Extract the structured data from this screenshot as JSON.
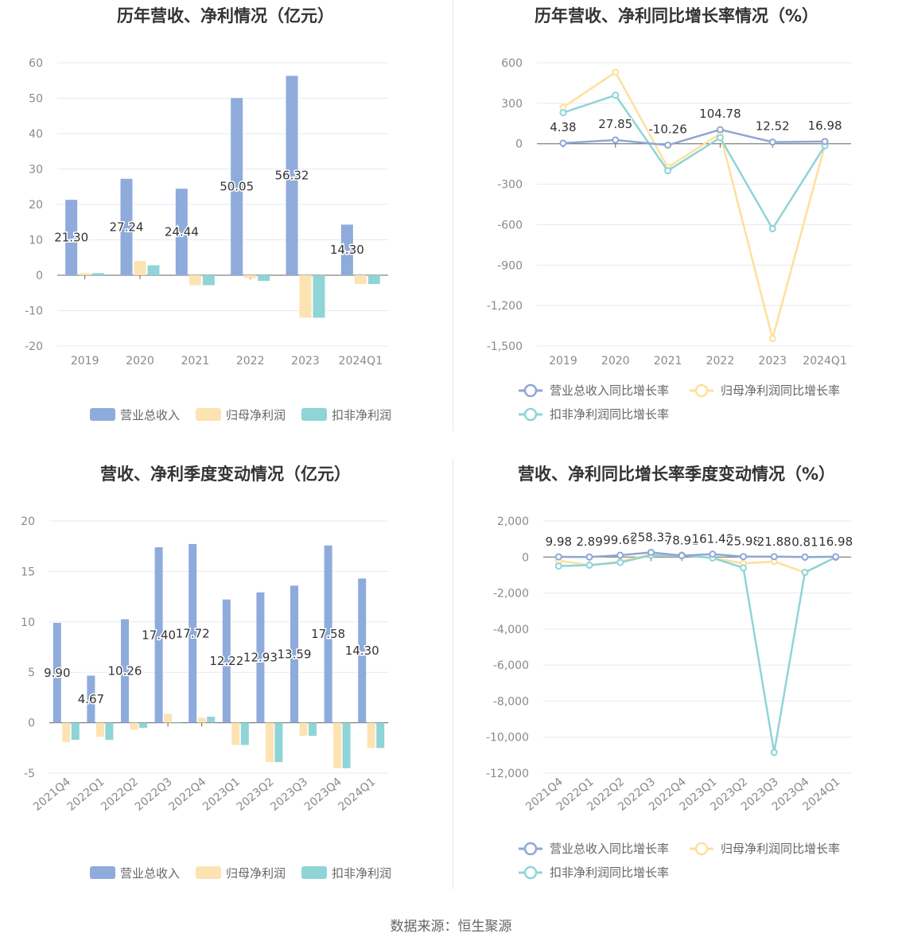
{
  "colors": {
    "revenue": "#8eabdc",
    "net_profit": "#fde2b2",
    "deducted_profit": "#8fd4d7",
    "revenue_line": "#8ea7d5",
    "net_profit_line": "#fde09a",
    "deducted_profit_line": "#8fd4d7",
    "grid": "#e6e9f0",
    "axis_text": "#8a8a8a"
  },
  "footer": {
    "source": "数据来源：恒生聚源"
  },
  "chart_data": [
    {
      "id": "annual-bars",
      "type": "bar",
      "title": "历年营收、净利情况（亿元）",
      "categories": [
        "2019",
        "2020",
        "2021",
        "2022",
        "2023",
        "2024Q1"
      ],
      "ylim": [
        -20,
        60
      ],
      "yticks": [
        60,
        50,
        40,
        30,
        20,
        10,
        0,
        -10,
        -20
      ],
      "grid": true,
      "legend": "bottom",
      "series": [
        {
          "name": "营业总收入",
          "values": [
            21.3,
            27.24,
            24.44,
            50.05,
            56.32,
            14.3
          ],
          "labels": [
            "21.30",
            "27.24",
            "24.44",
            "50.05",
            "56.32",
            "14.30"
          ]
        },
        {
          "name": "归母净利润",
          "values": [
            0.6,
            4.0,
            -2.8,
            -0.8,
            -12.0,
            -2.5
          ]
        },
        {
          "name": "扣非净利润",
          "values": [
            0.6,
            2.8,
            -2.8,
            -1.6,
            -12.0,
            -2.5
          ]
        }
      ]
    },
    {
      "id": "annual-growth",
      "type": "line",
      "title": "历年营收、净利同比增长率情况（%）",
      "categories": [
        "2019",
        "2020",
        "2021",
        "2022",
        "2023",
        "2024Q1"
      ],
      "ylim": [
        -1500,
        600
      ],
      "yticks": [
        600,
        300,
        0,
        -300,
        -600,
        -900,
        -1200,
        -1500
      ],
      "ytick_labels": [
        "600",
        "300",
        "0",
        "-300",
        "-600",
        "-900",
        "-1,200",
        "-1,500"
      ],
      "grid": true,
      "legend": "bottom",
      "series": [
        {
          "name": "营业总收入同比增长率",
          "values": [
            4.38,
            27.85,
            -10.26,
            104.78,
            12.52,
            16.98
          ],
          "labels": [
            "4.38",
            "27.85",
            "-10.26",
            "104.78",
            "12.52",
            "16.98"
          ]
        },
        {
          "name": "归母净利润同比增长率",
          "values": [
            270,
            530,
            -175,
            75,
            -1445,
            -10
          ]
        },
        {
          "name": "扣非净利润同比增长率",
          "values": [
            230,
            360,
            -200,
            45,
            -630,
            -15
          ]
        }
      ]
    },
    {
      "id": "quarterly-bars",
      "type": "bar",
      "title": "营收、净利季度变动情况（亿元）",
      "categories": [
        "2021Q4",
        "2022Q1",
        "2022Q2",
        "2022Q3",
        "2022Q4",
        "2023Q1",
        "2023Q2",
        "2023Q3",
        "2023Q4",
        "2024Q1"
      ],
      "ylim": [
        -5,
        20
      ],
      "yticks": [
        20,
        15,
        10,
        5,
        0,
        -5
      ],
      "grid": true,
      "legend": "bottom",
      "series": [
        {
          "name": "营业总收入",
          "values": [
            9.9,
            4.67,
            10.26,
            17.4,
            17.72,
            12.22,
            12.93,
            13.59,
            17.58,
            14.3
          ],
          "labels": [
            "9.90",
            "4.67",
            "10.26",
            "17.40",
            "17.72",
            "12.22",
            "12.93",
            "13.59",
            "17.58",
            "14.30"
          ]
        },
        {
          "name": "归母净利润",
          "values": [
            -1.9,
            -1.4,
            -0.7,
            0.9,
            0.5,
            -2.2,
            -3.9,
            -1.3,
            -4.5,
            -2.5
          ]
        },
        {
          "name": "扣非净利润",
          "values": [
            -1.7,
            -1.7,
            -0.5,
            0.0,
            0.6,
            -2.2,
            -3.9,
            -1.3,
            -4.5,
            -2.5
          ]
        }
      ]
    },
    {
      "id": "quarterly-growth",
      "type": "line",
      "title": "营收、净利同比增长率季度变动情况（%）",
      "categories": [
        "2021Q4",
        "2022Q1",
        "2022Q2",
        "2022Q3",
        "2022Q4",
        "2023Q1",
        "2023Q2",
        "2023Q3",
        "2023Q4",
        "2024Q1"
      ],
      "ylim": [
        -12000,
        2000
      ],
      "yticks": [
        2000,
        0,
        -2000,
        -4000,
        -6000,
        -8000,
        -10000,
        -12000
      ],
      "ytick_labels": [
        "2,000",
        "0",
        "-2,000",
        "-4,000",
        "-6,000",
        "-8,000",
        "-10,000",
        "-12,000"
      ],
      "grid": true,
      "legend": "bottom",
      "series": [
        {
          "name": "营业总收入同比增长率",
          "values": [
            9.98,
            2.89,
            99.66,
            258.33,
            78.91,
            161.48,
            25.98,
            21.88,
            0.81,
            16.98
          ],
          "labels": [
            "9.98",
            "2.89",
            "99.66",
            "258.33",
            "78.91",
            "161.48",
            "25.98",
            "21.88",
            "0.81",
            "16.98"
          ]
        },
        {
          "name": "归母净利润同比增长率",
          "values": [
            -200,
            -450,
            -250,
            150,
            120,
            -50,
            -350,
            -250,
            -850,
            -15
          ]
        },
        {
          "name": "扣非净利润同比增长率",
          "values": [
            -500,
            -450,
            -300,
            100,
            100,
            -50,
            -600,
            -10850,
            -850,
            -15
          ]
        }
      ]
    }
  ]
}
